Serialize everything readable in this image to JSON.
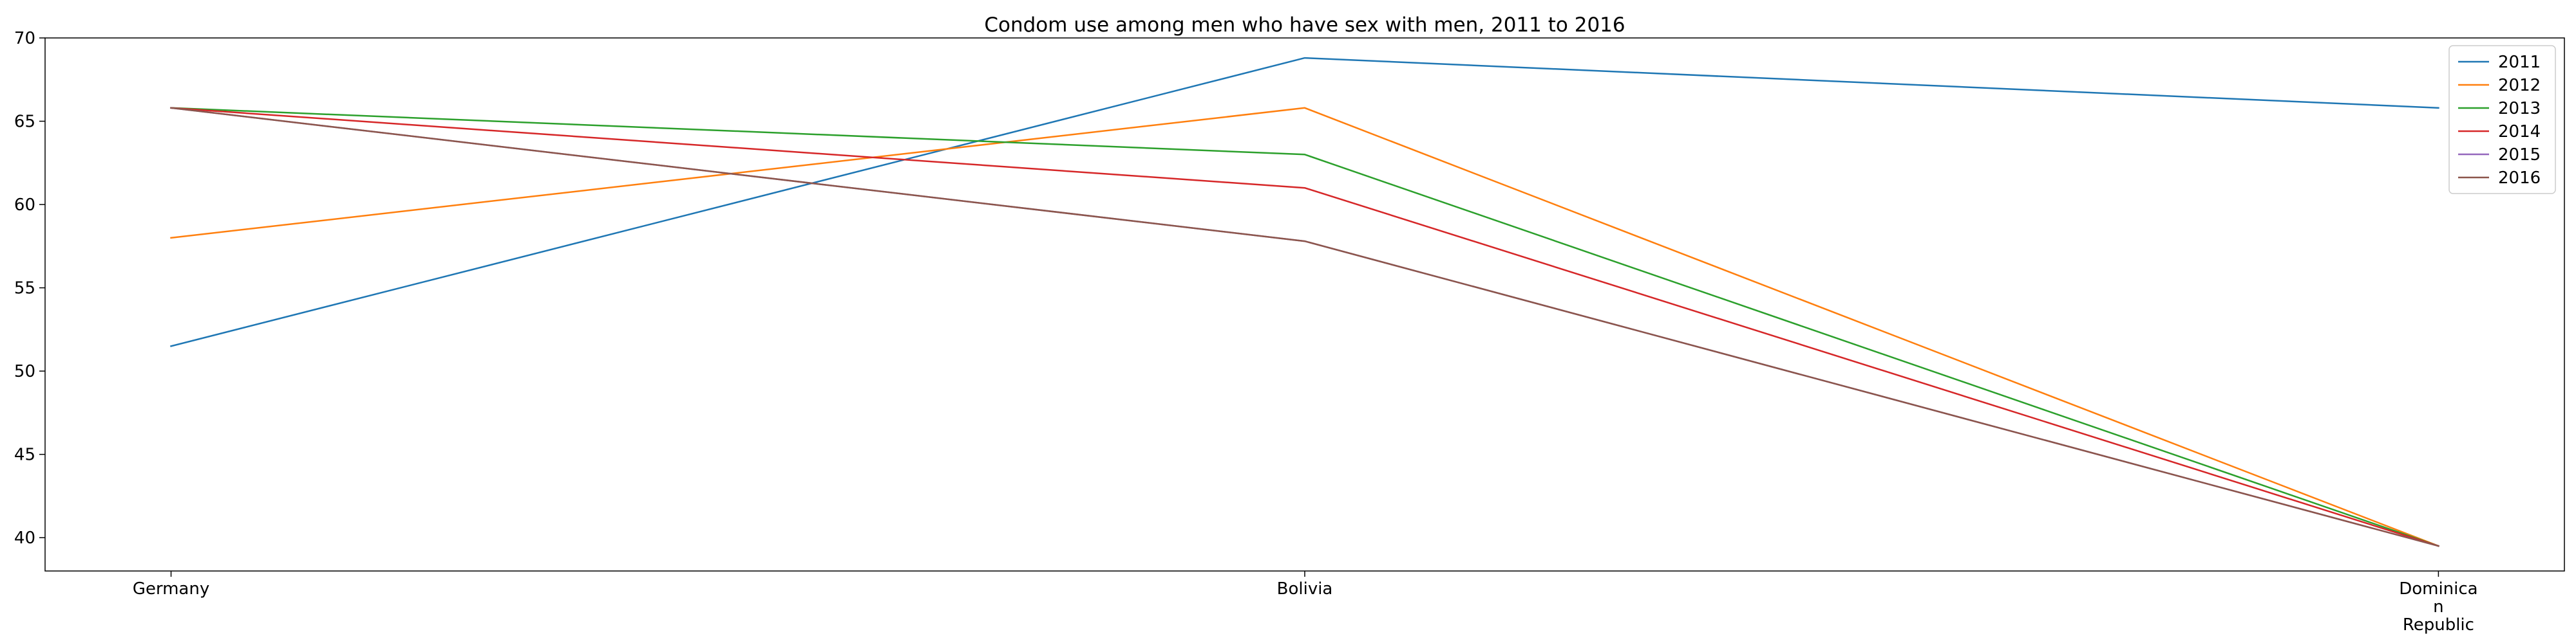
{
  "chart_data": {
    "type": "line",
    "title": "Condom use among men who have sex with men, 2011 to 2016",
    "xlabel": "",
    "ylabel": "",
    "categories": [
      "Germany",
      "Bolivia",
      "Dominican Republic"
    ],
    "category_lines": [
      [
        "Germany"
      ],
      [
        "Bolivia"
      ],
      [
        "Dominica",
        "n",
        "Republic"
      ]
    ],
    "ylim": [
      38,
      70
    ],
    "yticks": [
      40,
      45,
      50,
      55,
      60,
      65,
      70
    ],
    "grid": false,
    "legend_position": "top-right",
    "series": [
      {
        "name": "2011",
        "color": "#1f77b4",
        "values": [
          51.5,
          68.8,
          65.8
        ]
      },
      {
        "name": "2012",
        "color": "#ff7f0e",
        "values": [
          58.0,
          65.8,
          39.5
        ]
      },
      {
        "name": "2013",
        "color": "#2ca02c",
        "values": [
          65.8,
          63.0,
          39.5
        ]
      },
      {
        "name": "2014",
        "color": "#d62728",
        "values": [
          65.8,
          61.0,
          39.5
        ]
      },
      {
        "name": "2015",
        "color": "#9467bd",
        "values": [
          65.8,
          57.8,
          39.5
        ]
      },
      {
        "name": "2016",
        "color": "#8c564b",
        "values": [
          65.8,
          57.8,
          39.5
        ]
      }
    ]
  }
}
